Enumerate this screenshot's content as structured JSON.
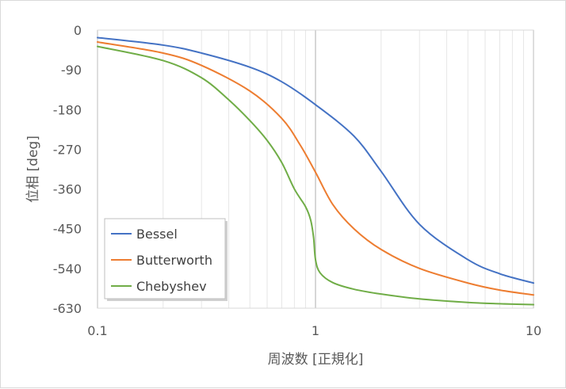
{
  "chart_data": {
    "type": "line",
    "xlabel": "周波数 [正規化]",
    "ylabel": "位相 [deg]",
    "x_scale": "log",
    "xlim": [
      0.1,
      10
    ],
    "ylim": [
      -630,
      0
    ],
    "x_ticks": [
      0.1,
      1,
      10
    ],
    "x_tick_labels": [
      "0.1",
      "1",
      "10"
    ],
    "y_ticks": [
      0,
      -90,
      -180,
      -270,
      -360,
      -450,
      -540,
      -630
    ],
    "y_tick_labels": [
      "0",
      "-90",
      "-180",
      "-270",
      "-360",
      "-450",
      "-540",
      "-630"
    ],
    "grid": {
      "x_minor": true,
      "y_major": false
    },
    "legend_position": "bottom-left",
    "series": [
      {
        "name": "Bessel",
        "color": "#4472c4",
        "x": [
          0.1,
          0.2,
          0.3,
          0.5,
          0.7,
          1.0,
          1.5,
          2.0,
          3.0,
          5.0,
          7.0,
          10.0
        ],
        "y": [
          -17,
          -34,
          -52,
          -84,
          -117,
          -169,
          -240,
          -320,
          -440,
          -520,
          -552,
          -573
        ]
      },
      {
        "name": "Butterworth",
        "color": "#ed7d31",
        "x": [
          0.1,
          0.2,
          0.3,
          0.5,
          0.7,
          0.85,
          1.0,
          1.2,
          1.5,
          2.0,
          3.0,
          5.0,
          7.0,
          10.0
        ],
        "y": [
          -27,
          -52,
          -80,
          -138,
          -200,
          -260,
          -322,
          -395,
          -450,
          -497,
          -540,
          -573,
          -589,
          -600
        ]
      },
      {
        "name": "Chebyshev",
        "color": "#70ad47",
        "x": [
          0.1,
          0.2,
          0.3,
          0.4,
          0.5,
          0.6,
          0.7,
          0.8,
          0.9,
          0.95,
          0.98,
          1.0,
          1.05,
          1.2,
          1.5,
          2.0,
          3.0,
          5.0,
          7.0,
          10.0
        ],
        "y": [
          -37,
          -69,
          -108,
          -158,
          -205,
          -250,
          -300,
          -360,
          -400,
          -430,
          -470,
          -520,
          -550,
          -572,
          -587,
          -598,
          -609,
          -617,
          -620,
          -622
        ]
      }
    ]
  }
}
